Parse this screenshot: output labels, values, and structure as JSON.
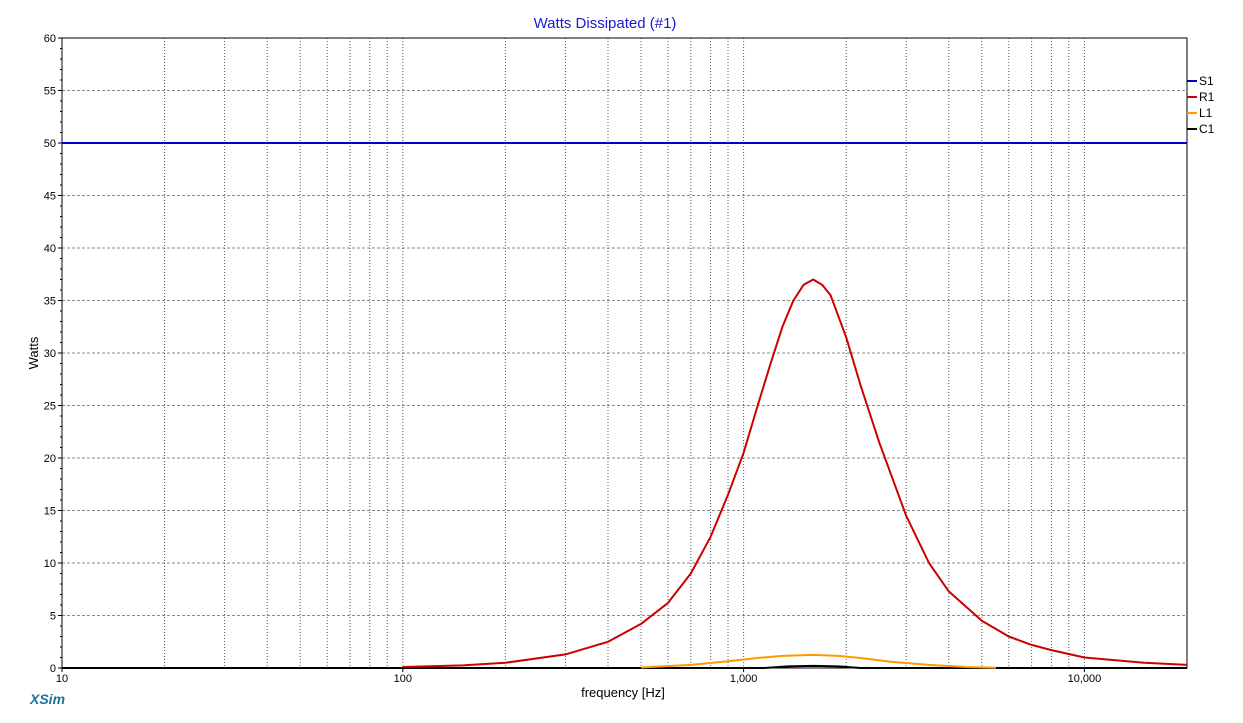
{
  "chart_data": {
    "type": "line",
    "title": "Watts Dissipated (#1)",
    "xlabel": "frequency [Hz]",
    "ylabel": "Watts",
    "xscale": "log",
    "xlim": [
      10,
      20000
    ],
    "ylim": [
      0,
      60
    ],
    "x_tick_labels": [
      "10",
      "100",
      "1,000",
      "10,000"
    ],
    "x_tick_values": [
      10,
      100,
      1000,
      10000
    ],
    "y_ticks": [
      0,
      5,
      10,
      15,
      20,
      25,
      30,
      35,
      40,
      45,
      50,
      55,
      60
    ],
    "grid": true,
    "legend_position": "right",
    "series": [
      {
        "name": "S1",
        "color": "#0000c8",
        "points": [
          [
            10,
            50
          ],
          [
            20000,
            50
          ]
        ]
      },
      {
        "name": "R1",
        "color": "#cc0000",
        "points": [
          [
            100,
            0.1
          ],
          [
            150,
            0.25
          ],
          [
            200,
            0.5
          ],
          [
            300,
            1.3
          ],
          [
            400,
            2.5
          ],
          [
            500,
            4.2
          ],
          [
            600,
            6.2
          ],
          [
            700,
            9.0
          ],
          [
            800,
            12.5
          ],
          [
            900,
            16.5
          ],
          [
            1000,
            20.5
          ],
          [
            1100,
            25.0
          ],
          [
            1200,
            29.0
          ],
          [
            1300,
            32.5
          ],
          [
            1400,
            35.0
          ],
          [
            1500,
            36.5
          ],
          [
            1600,
            37.0
          ],
          [
            1700,
            36.5
          ],
          [
            1800,
            35.5
          ],
          [
            2000,
            31.5
          ],
          [
            2200,
            27.0
          ],
          [
            2500,
            21.5
          ],
          [
            3000,
            14.5
          ],
          [
            3500,
            10.0
          ],
          [
            4000,
            7.3
          ],
          [
            5000,
            4.5
          ],
          [
            6000,
            3.0
          ],
          [
            7000,
            2.2
          ],
          [
            8000,
            1.7
          ],
          [
            10000,
            1.0
          ],
          [
            15000,
            0.5
          ],
          [
            20000,
            0.3
          ]
        ]
      },
      {
        "name": "L1",
        "color": "#ff9900",
        "points": [
          [
            500,
            0.05
          ],
          [
            700,
            0.3
          ],
          [
            900,
            0.65
          ],
          [
            1100,
            0.95
          ],
          [
            1300,
            1.15
          ],
          [
            1600,
            1.25
          ],
          [
            1900,
            1.15
          ],
          [
            2200,
            0.95
          ],
          [
            2700,
            0.6
          ],
          [
            3500,
            0.3
          ],
          [
            4500,
            0.1
          ],
          [
            5500,
            0.02
          ]
        ]
      },
      {
        "name": "C1",
        "color": "#000000",
        "points": [
          [
            10,
            0
          ],
          [
            1150,
            0
          ],
          [
            1350,
            0.15
          ],
          [
            1600,
            0.2
          ],
          [
            1900,
            0.15
          ],
          [
            2200,
            0
          ],
          [
            20000,
            0
          ]
        ]
      }
    ]
  },
  "branding": {
    "logo_text": "XSim"
  }
}
